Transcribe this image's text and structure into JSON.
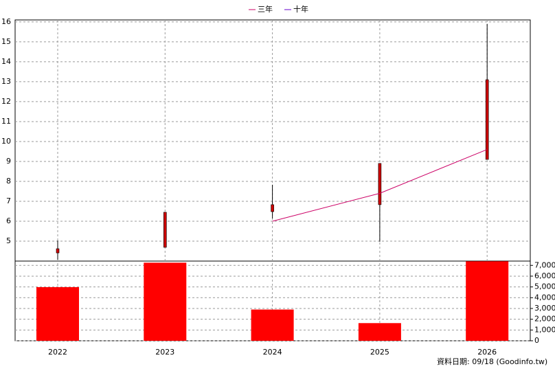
{
  "chart_data": {
    "type": "candlestick",
    "categories": [
      "2022",
      "2023",
      "2024",
      "2025",
      "2026"
    ],
    "open": [
      4.41,
      4.69,
      6.48,
      6.83,
      9.1
    ],
    "high": [
      5.03,
      6.45,
      7.83,
      8.9,
      15.9
    ],
    "low": [
      4.07,
      4.69,
      6.14,
      4.97,
      9.1
    ],
    "close": [
      4.62,
      6.45,
      6.83,
      8.9,
      13.1
    ],
    "body_color": "#cc0000",
    "ylim": [
      4,
      16.1
    ],
    "yticks": [
      5,
      6,
      7,
      8,
      9,
      10,
      11,
      12,
      13,
      14,
      15,
      16
    ],
    "series": [
      {
        "name": "三年",
        "color": "#cc0066",
        "values": [
          null,
          null,
          6.0,
          7.4,
          9.6
        ]
      },
      {
        "name": "十年",
        "color": "#6600cc",
        "values": [
          null,
          null,
          null,
          null,
          null
        ]
      }
    ],
    "volume": {
      "color": "#ff0000",
      "values": [
        4980,
        7250,
        2900,
        1640,
        7380
      ],
      "y2lim": [
        0,
        7400
      ],
      "y2ticks": [
        0,
        {
          "value": 1000,
          "label": "1,000"
        },
        {
          "value": 2000,
          "label": "2,000"
        },
        {
          "value": 3000,
          "label": "3,000"
        },
        {
          "value": 4000,
          "label": "4,000"
        },
        {
          "value": 5000,
          "label": "5,000"
        },
        {
          "value": 6000,
          "label": "6,000"
        },
        {
          "value": 7000,
          "label": "7,000"
        }
      ]
    },
    "grid": true,
    "source": "資料日期: 09/18  (Goodinfo.tw)"
  }
}
